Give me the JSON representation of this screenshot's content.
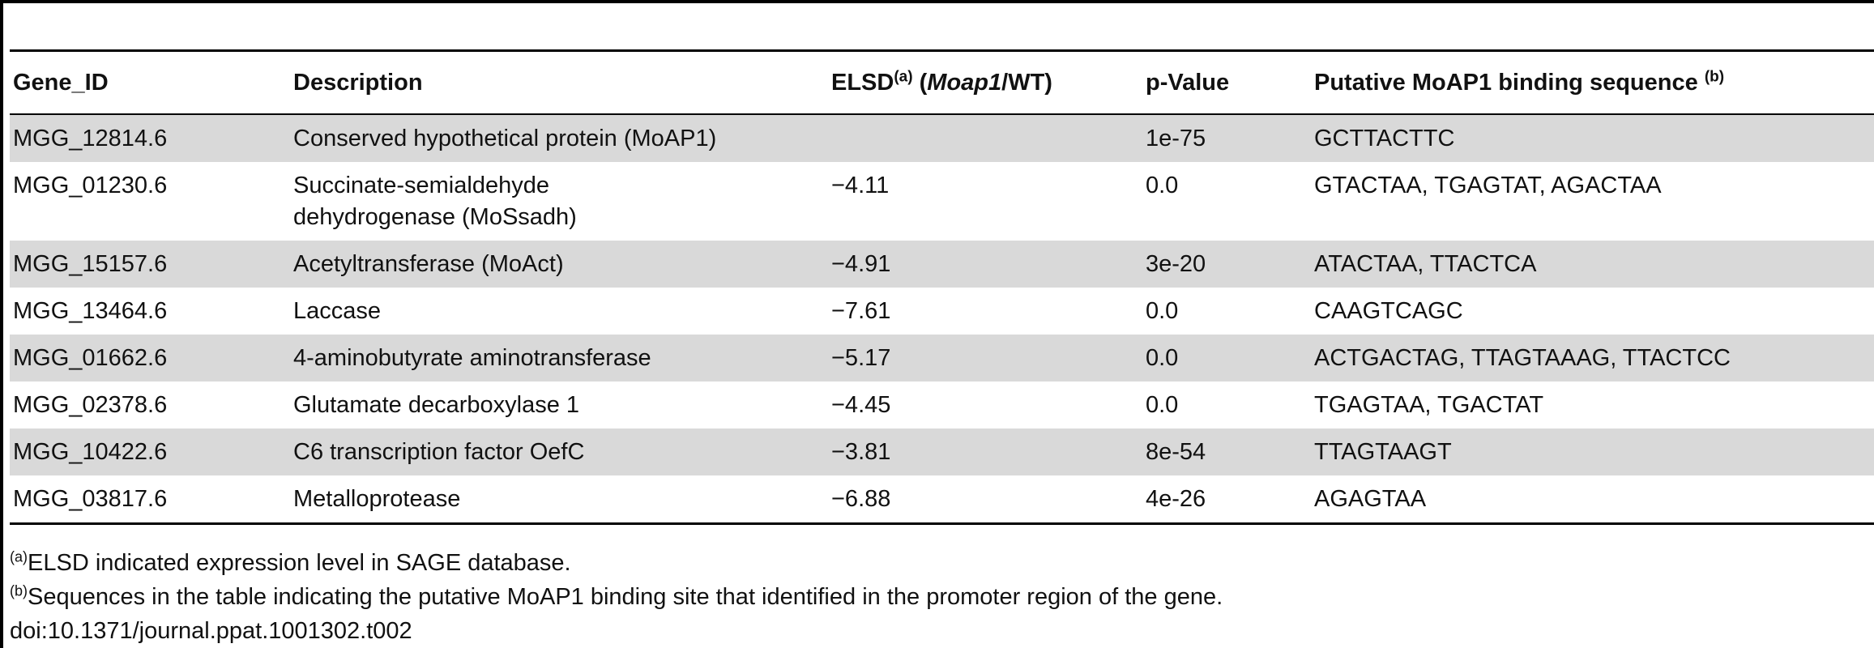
{
  "table": {
    "headers": {
      "gene_id": "Gene_ID",
      "description": "Description",
      "elsd_main": "ELSD",
      "elsd_sup": "(a)",
      "elsd_open": " (",
      "elsd_italic": "Moap1",
      "elsd_close": "/WT)",
      "pvalue": "p-Value",
      "binding": "Putative MoAP1 binding sequence ",
      "binding_sup": "(b)"
    },
    "rows": [
      {
        "gene_id": "MGG_12814.6",
        "description": "Conserved hypothetical protein (MoAP1)",
        "elsd": "",
        "pvalue": "1e-75",
        "binding": "GCTTACTTC"
      },
      {
        "gene_id": "MGG_01230.6",
        "description": "Succinate-semialdehyde dehydrogenase (MoSsadh)",
        "elsd": "−4.11",
        "pvalue": "0.0",
        "binding": "GTACTAA, TGAGTAT, AGACTAA"
      },
      {
        "gene_id": "MGG_15157.6",
        "description": "Acetyltransferase (MoAct)",
        "elsd": "−4.91",
        "pvalue": "3e-20",
        "binding": "ATACTAA, TTACTCA"
      },
      {
        "gene_id": "MGG_13464.6",
        "description": "Laccase",
        "elsd": "−7.61",
        "pvalue": "0.0",
        "binding": "CAAGTCAGC"
      },
      {
        "gene_id": "MGG_01662.6",
        "description": "4-aminobutyrate aminotransferase",
        "elsd": "−5.17",
        "pvalue": "0.0",
        "binding": "ACTGACTAG, TTAGTAAAG, TTACTCC"
      },
      {
        "gene_id": "MGG_02378.6",
        "description": "Glutamate decarboxylase 1",
        "elsd": "−4.45",
        "pvalue": "0.0",
        "binding": "TGAGTAA, TGACTAT"
      },
      {
        "gene_id": "MGG_10422.6",
        "description": "C6 transcription factor OefC",
        "elsd": "−3.81",
        "pvalue": "8e-54",
        "binding": "TTAGTAAGT"
      },
      {
        "gene_id": "MGG_03817.6",
        "description": "Metalloprotease",
        "elsd": "−6.88",
        "pvalue": "4e-26",
        "binding": "AGAGTAA"
      }
    ]
  },
  "footnotes": {
    "a_mark": "(a)",
    "a_text": "ELSD indicated expression level in SAGE database.",
    "b_mark": "(b)",
    "b_text": "Sequences in the table indicating the putative MoAP1 binding site that identified in the promoter region of the gene.",
    "doi": "doi:10.1371/journal.ppat.1001302.t002"
  }
}
